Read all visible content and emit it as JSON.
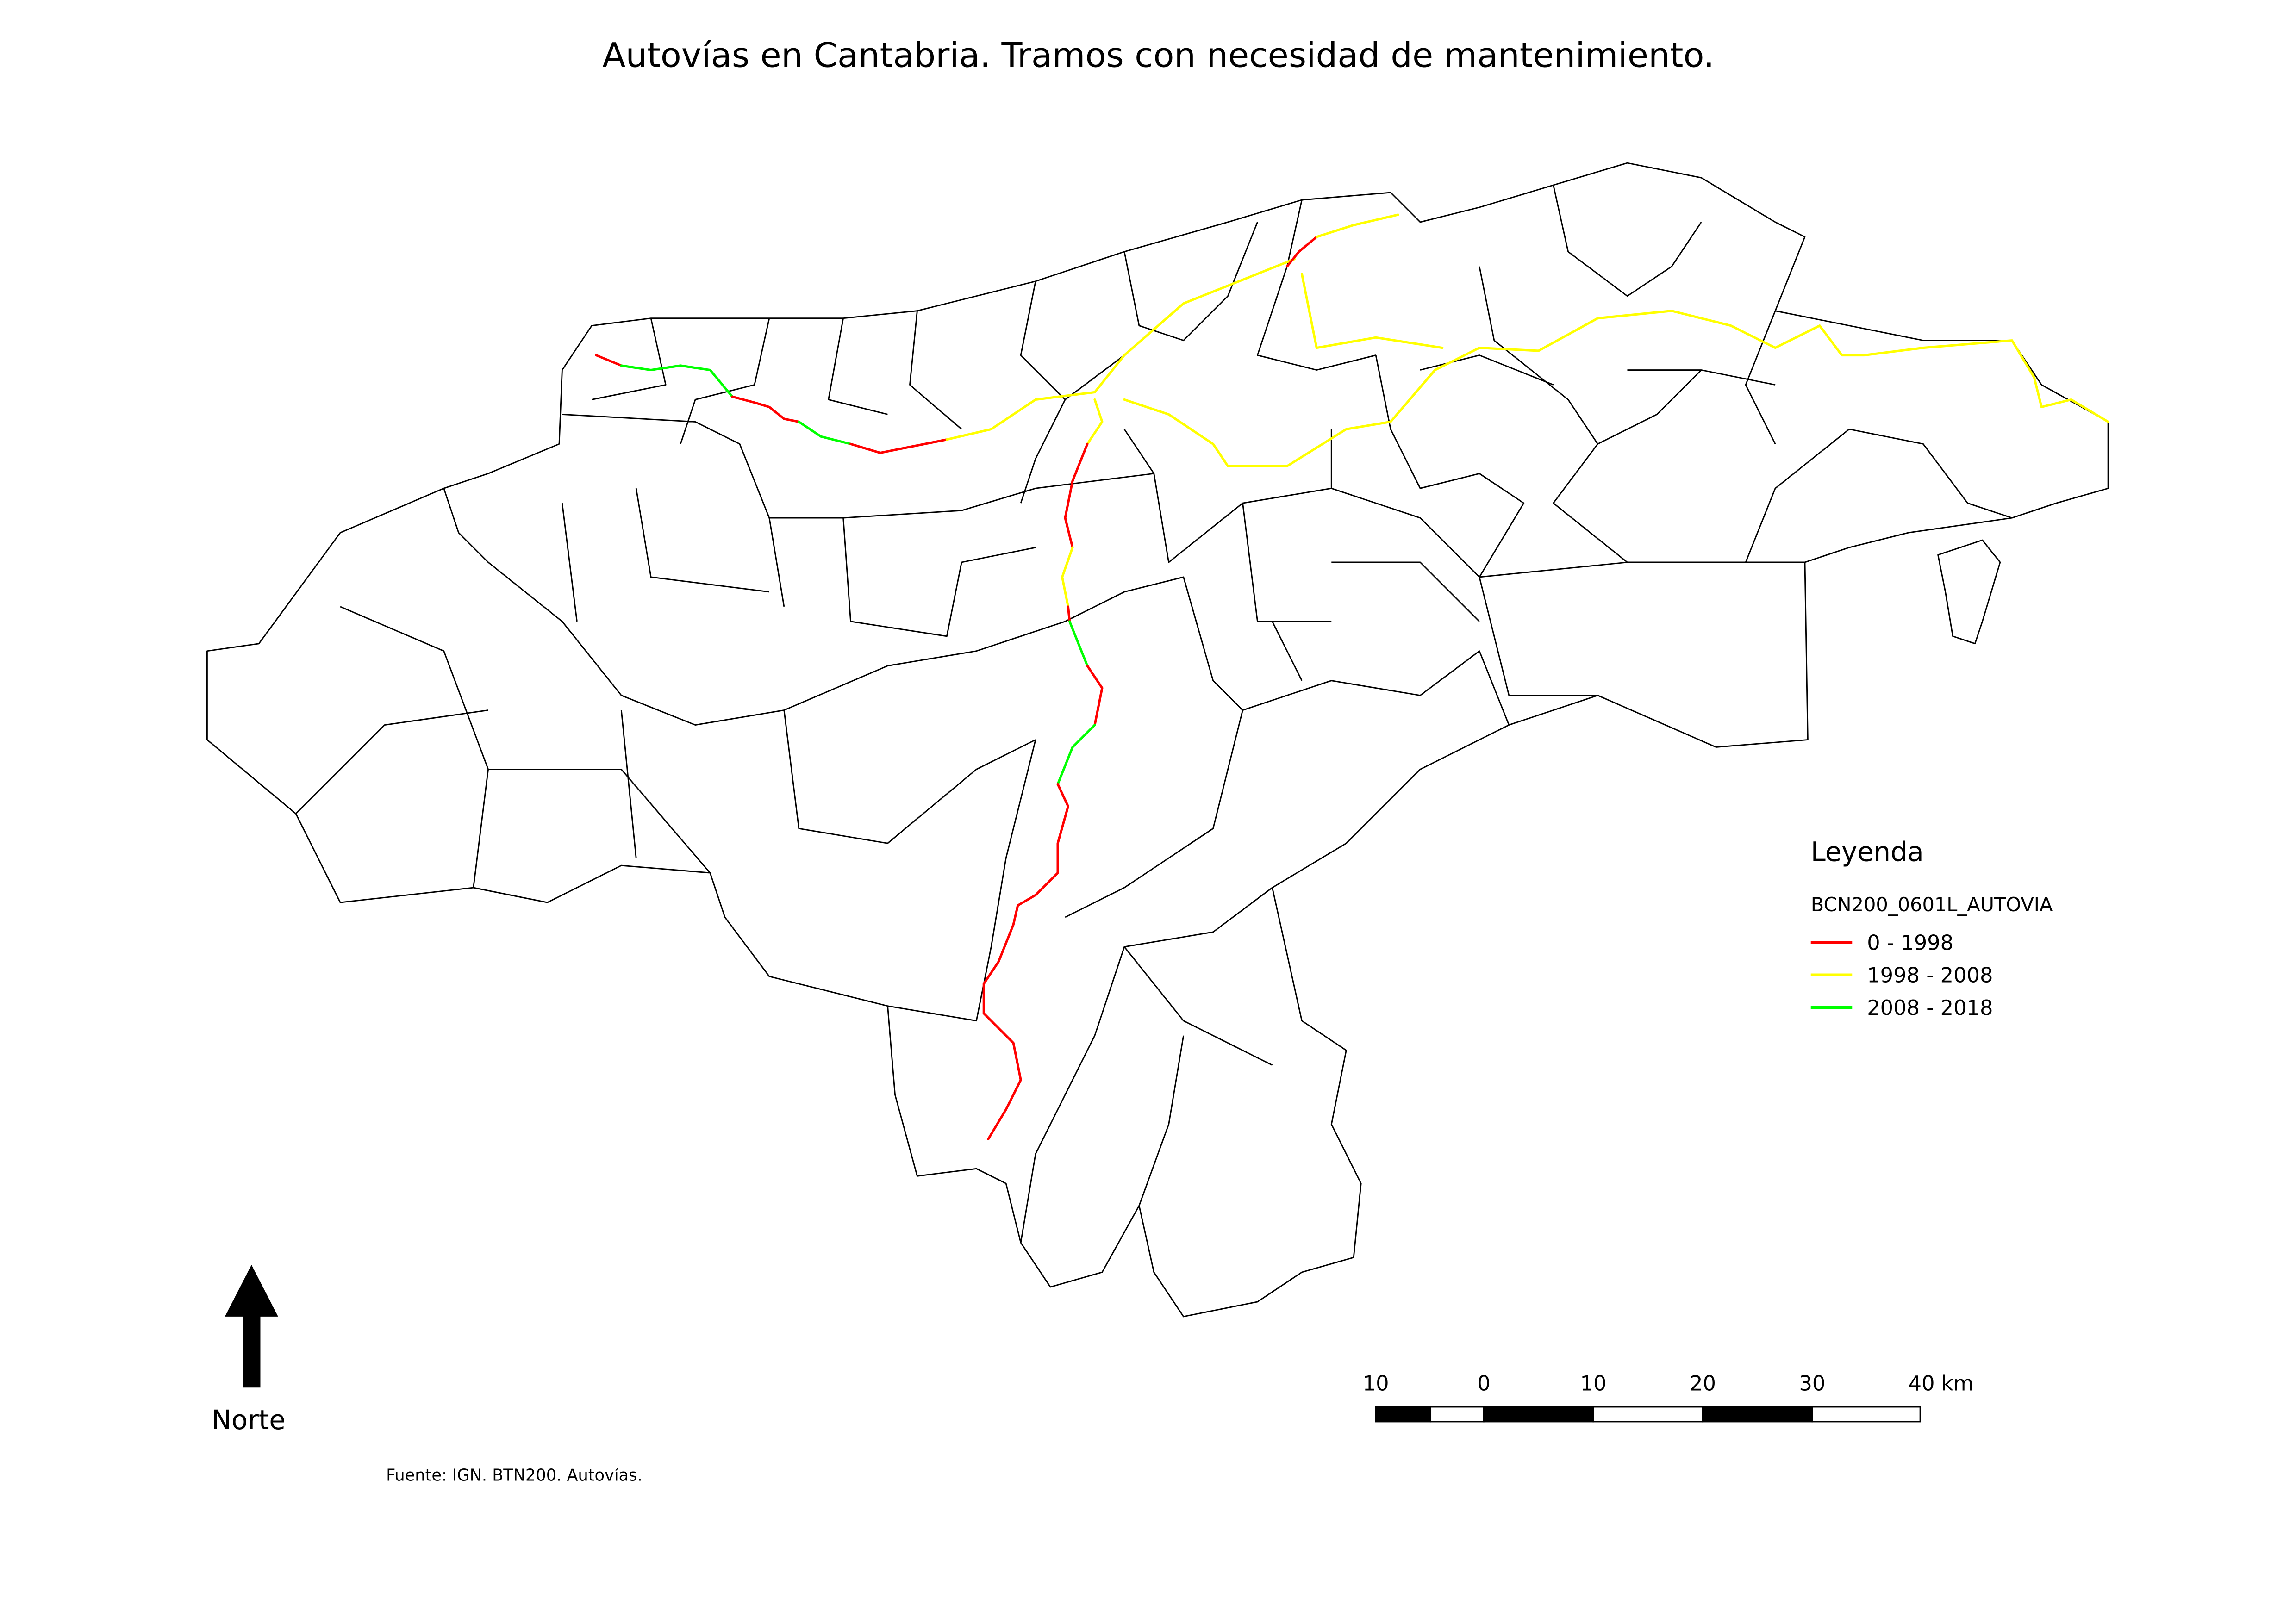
{
  "title": "Autovías en Cantabria. Tramos con necesidad de mantenimiento.",
  "legend": {
    "heading": "Leyenda",
    "layer": "BCN200_0601L_AUTOVIA",
    "items": [
      {
        "label": "0 - 1998",
        "color": "#ff0000"
      },
      {
        "label": "1998 - 2008",
        "color": "#ffff00"
      },
      {
        "label": "2008 - 2018",
        "color": "#00ff00"
      }
    ]
  },
  "north_arrow": {
    "label": "Norte"
  },
  "scale_bar": {
    "labels": [
      "10",
      "0",
      "10",
      "20",
      "30",
      "40 km"
    ]
  },
  "source": "Fuente: IGN. BTN200. Autovías."
}
